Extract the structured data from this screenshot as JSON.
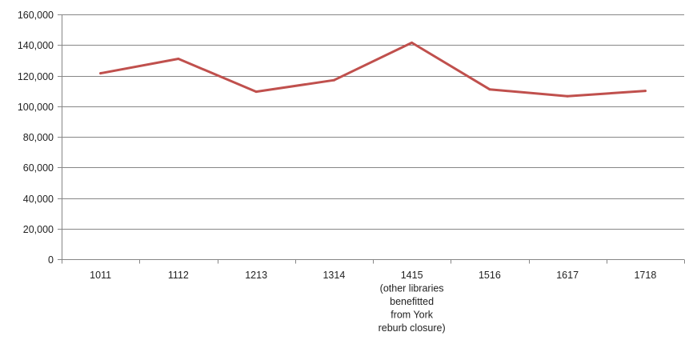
{
  "chart_data": {
    "type": "line",
    "title": "",
    "xlabel": "",
    "ylabel": "",
    "categories": [
      [
        "1011"
      ],
      [
        "1112"
      ],
      [
        "1213"
      ],
      [
        "1314"
      ],
      [
        "1415",
        "(other libraries",
        "benefitted",
        "from York",
        "reburb closure)"
      ],
      [
        "1516"
      ],
      [
        "1617"
      ],
      [
        "1718"
      ]
    ],
    "series": [
      {
        "values": [
          121500,
          131000,
          109500,
          117000,
          141500,
          111000,
          106500,
          110000
        ],
        "color": "#C0504D"
      }
    ],
    "ylim": [
      0,
      160000
    ],
    "yticks": [
      0,
      20000,
      40000,
      60000,
      80000,
      100000,
      120000,
      140000,
      160000
    ],
    "ytick_labels": [
      "0",
      "20,000",
      "40,000",
      "60,000",
      "80,000",
      "100,000",
      "120,000",
      "140,000",
      "160,000"
    ],
    "grid": true,
    "legend": "none",
    "colors": {
      "grid": "#868686",
      "axis": "#868686"
    }
  }
}
